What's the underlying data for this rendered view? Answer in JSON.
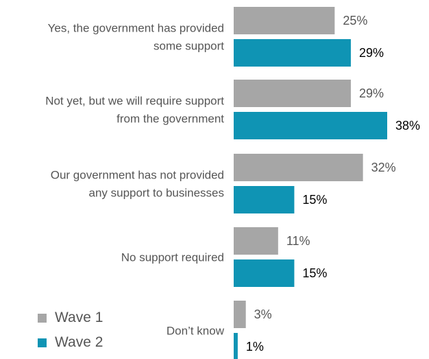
{
  "chart_data": {
    "type": "bar",
    "orientation": "horizontal",
    "categories": [
      [
        "Yes, the government has provided",
        "some support"
      ],
      [
        "Not yet, but we will require support",
        "from the government"
      ],
      [
        "Our government has not provided",
        "any support to businesses"
      ],
      [
        "No support required"
      ],
      [
        "Don’t know"
      ]
    ],
    "series": [
      {
        "name": "Wave 1",
        "color": "#a6a6a6",
        "values": [
          25,
          29,
          32,
          11,
          3
        ],
        "labels": [
          "25%",
          "29%",
          "32%",
          "11%",
          "3%"
        ]
      },
      {
        "name": "Wave 2",
        "color": "#0f94b4",
        "values": [
          29,
          38,
          15,
          15,
          1
        ],
        "labels": [
          "29%",
          "38%",
          "15%",
          "15%",
          "1%"
        ]
      }
    ],
    "xlim": [
      0,
      40
    ],
    "grid": false,
    "legend": "bottom-left"
  },
  "legend": {
    "items": [
      {
        "label": "Wave 1",
        "color": "#a6a6a6"
      },
      {
        "label": "Wave 2",
        "color": "#0f94b4"
      }
    ]
  }
}
